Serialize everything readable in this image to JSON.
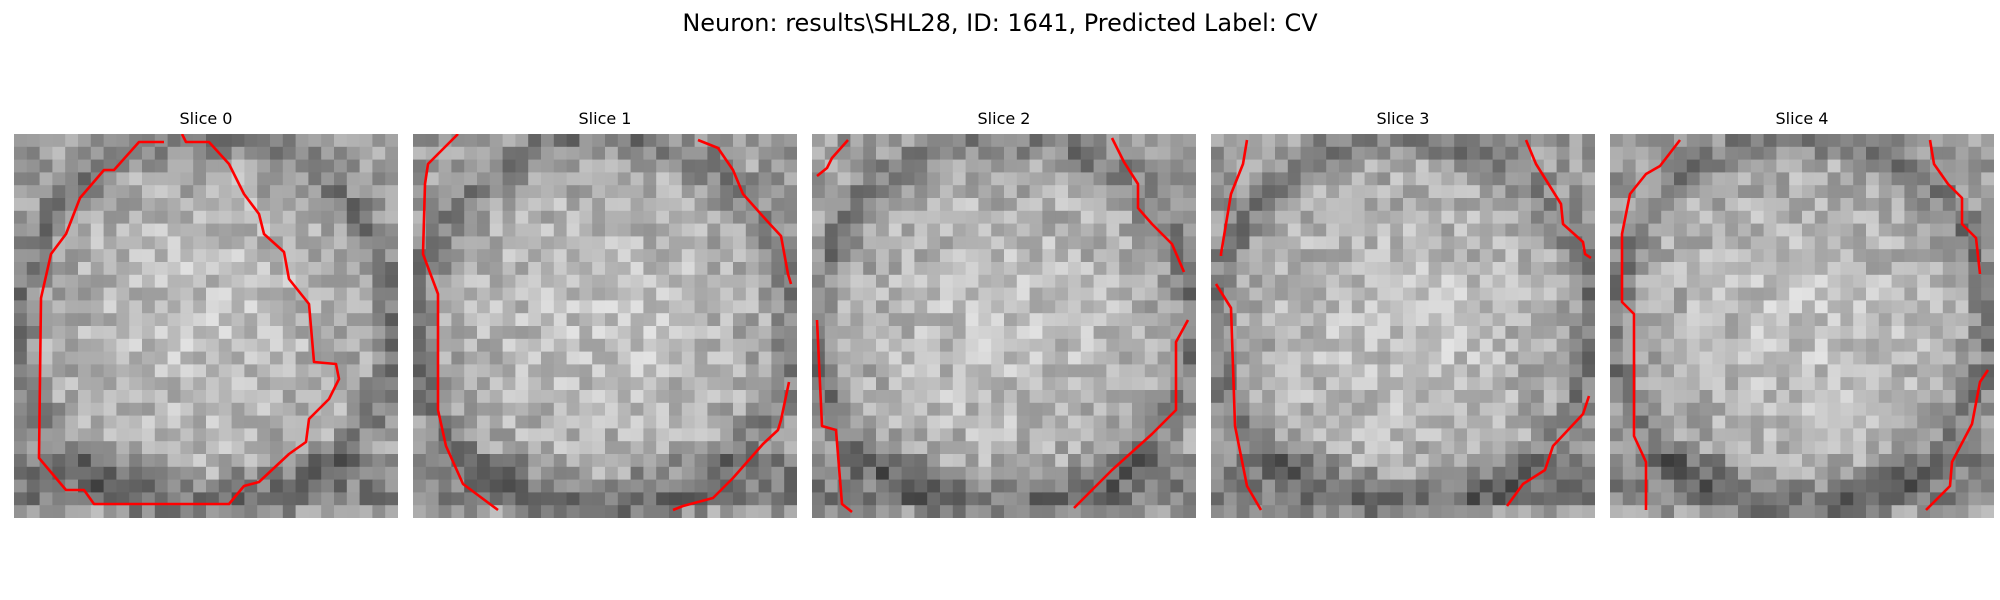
{
  "figure": {
    "title": "Neuron: results\\SHL28, ID: 1641, Predicted Label: CV"
  },
  "panels": [
    {
      "title": "Slice 0",
      "seed": 11,
      "contour_color": "#ff0000"
    },
    {
      "title": "Slice 1",
      "seed": 23,
      "contour_color": "#ff0000"
    },
    {
      "title": "Slice 2",
      "seed": 37,
      "contour_color": "#ff0000"
    },
    {
      "title": "Slice 3",
      "seed": 41,
      "contour_color": "#ff0000"
    },
    {
      "title": "Slice 4",
      "seed": 59,
      "contour_color": "#ff0000"
    }
  ]
}
